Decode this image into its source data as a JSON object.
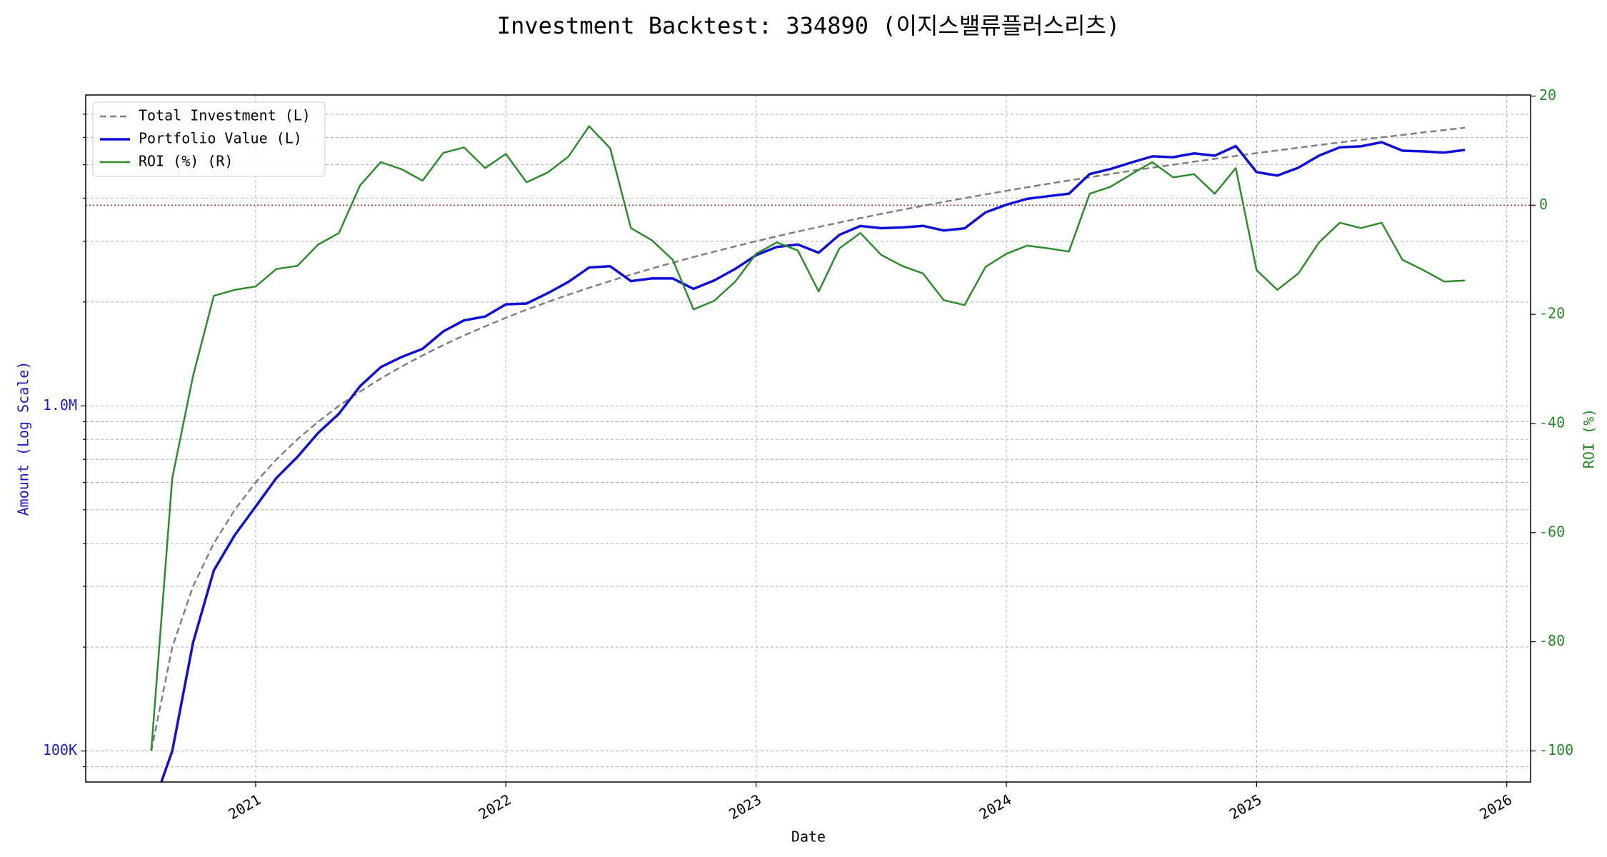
{
  "chart_data": {
    "type": "line",
    "title": "Investment Backtest: 334890 (이지스밸류플러스리츠)",
    "x_label": "Date",
    "y_label": "Amount (Log Scale)",
    "y2_label": "ROI (%)",
    "y_log": true,
    "grid": true,
    "legend": "upper left",
    "xlim": [
      2020.321,
      2026.095
    ],
    "xticks": [
      2021,
      2022,
      2023,
      2024,
      2025,
      2026
    ],
    "ylim": [
      81300,
      7960000
    ],
    "yticks": [
      {
        "value": 100000,
        "label": "100K"
      },
      {
        "value": 1000000,
        "label": "1.0M"
      }
    ],
    "yminorticks": [
      90000,
      200000,
      300000,
      400000,
      500000,
      600000,
      700000,
      800000,
      900000,
      2000000,
      3000000,
      4000000,
      5000000,
      6000000,
      7000000
    ],
    "y2lim": [
      -105.7,
      20.2
    ],
    "y2ticks": [
      -100,
      -80,
      -60,
      -40,
      -20,
      0,
      20
    ],
    "y_label_color": "#1a1acc",
    "y2_label_color": "#228b22",
    "reference_line": {
      "axis": "y2",
      "value": 0,
      "color": "#b22222"
    },
    "x": [
      2020.583,
      2020.667,
      2020.75,
      2020.833,
      2020.917,
      2021,
      2021.083,
      2021.167,
      2021.25,
      2021.333,
      2021.417,
      2021.5,
      2021.583,
      2021.667,
      2021.75,
      2021.833,
      2021.917,
      2022,
      2022.083,
      2022.167,
      2022.25,
      2022.333,
      2022.417,
      2022.5,
      2022.583,
      2022.667,
      2022.75,
      2022.833,
      2022.917,
      2023,
      2023.083,
      2023.167,
      2023.25,
      2023.333,
      2023.417,
      2023.5,
      2023.583,
      2023.667,
      2023.75,
      2023.833,
      2023.917,
      2024,
      2024.083,
      2024.167,
      2024.25,
      2024.333,
      2024.417,
      2024.5,
      2024.583,
      2024.667,
      2024.75,
      2024.833,
      2024.917,
      2025,
      2025.083,
      2025.167,
      2025.25,
      2025.333,
      2025.417,
      2025.5,
      2025.583,
      2025.667,
      2025.75,
      2025.833
    ],
    "series": [
      {
        "name": "Total Investment (L)",
        "color": "#808080",
        "dash": "dashed",
        "width": 2.5,
        "axis": "y",
        "values": [
          100000,
          200000,
          300000,
          400000,
          500000,
          600000,
          700000,
          800000,
          900000,
          1000000,
          1100000,
          1200000,
          1300000,
          1400000,
          1500000,
          1600000,
          1700000,
          1800000,
          1900000,
          2000000,
          2100000,
          2200000,
          2300000,
          2400000,
          2500000,
          2600000,
          2700000,
          2800000,
          2900000,
          3000000,
          3100000,
          3200000,
          3300000,
          3400000,
          3500000,
          3600000,
          3700000,
          3800000,
          3900000,
          4000000,
          4100000,
          4200000,
          4300000,
          4400000,
          4500000,
          4600000,
          4700000,
          4800000,
          4900000,
          5000000,
          5100000,
          5200000,
          5300000,
          5400000,
          5500000,
          5600000,
          5700000,
          5800000,
          5900000,
          6000000,
          6100000,
          6200000,
          6300000,
          6400000
        ]
      },
      {
        "name": "Portfolio Value (L)",
        "color": "#0f0fd8",
        "dash": "solid",
        "width": 3.5,
        "axis": "y",
        "values": [
          0,
          100000,
          206100,
          333600,
          422500,
          510600,
          618100,
          711200,
          835200,
          949000,
          1139600,
          1294800,
          1385800,
          1463000,
          1644000,
          1769600,
          1815600,
          1969200,
          1979800,
          2120000,
          2286900,
          2519000,
          2539200,
          2299200,
          2340000,
          2340000,
          2184300,
          2310000,
          2494000,
          2733000,
          2889200,
          2934400,
          2778600,
          3131400,
          3321500,
          3272400,
          3289300,
          3325000,
          3221400,
          3268000,
          3636700,
          3826200,
          3981800,
          4052400,
          4117500,
          4696600,
          4859800,
          5073600,
          5287100,
          5255000,
          5390700,
          5309200,
          5660400,
          4757400,
          4647500,
          4900000,
          5312400,
          5614400,
          5652200,
          5808000,
          5490000,
          5462200,
          5418000,
          5516800
        ]
      },
      {
        "name": "ROI (%) (R)",
        "color": "#2e8b2e",
        "dash": "solid",
        "width": 2.5,
        "axis": "y2",
        "values": [
          -100,
          -50,
          -31.3,
          -16.6,
          -15.5,
          -14.9,
          -11.7,
          -11.1,
          -7.2,
          -5.1,
          3.6,
          7.9,
          6.6,
          4.5,
          9.6,
          10.6,
          6.8,
          9.4,
          4.2,
          6.0,
          8.9,
          14.5,
          10.4,
          -4.2,
          -6.4,
          -10.0,
          -19.1,
          -17.5,
          -14.0,
          -8.9,
          -6.8,
          -8.3,
          -15.8,
          -7.9,
          -5.1,
          -9.1,
          -11.1,
          -12.5,
          -17.4,
          -18.3,
          -11.3,
          -8.9,
          -7.4,
          -7.9,
          -8.5,
          2.1,
          3.4,
          5.7,
          7.9,
          5.1,
          5.7,
          2.1,
          6.8,
          -11.9,
          -15.5,
          -12.5,
          -6.8,
          -3.2,
          -4.2,
          -3.2,
          -10.0,
          -11.9,
          -14.0,
          -13.8
        ]
      }
    ]
  }
}
